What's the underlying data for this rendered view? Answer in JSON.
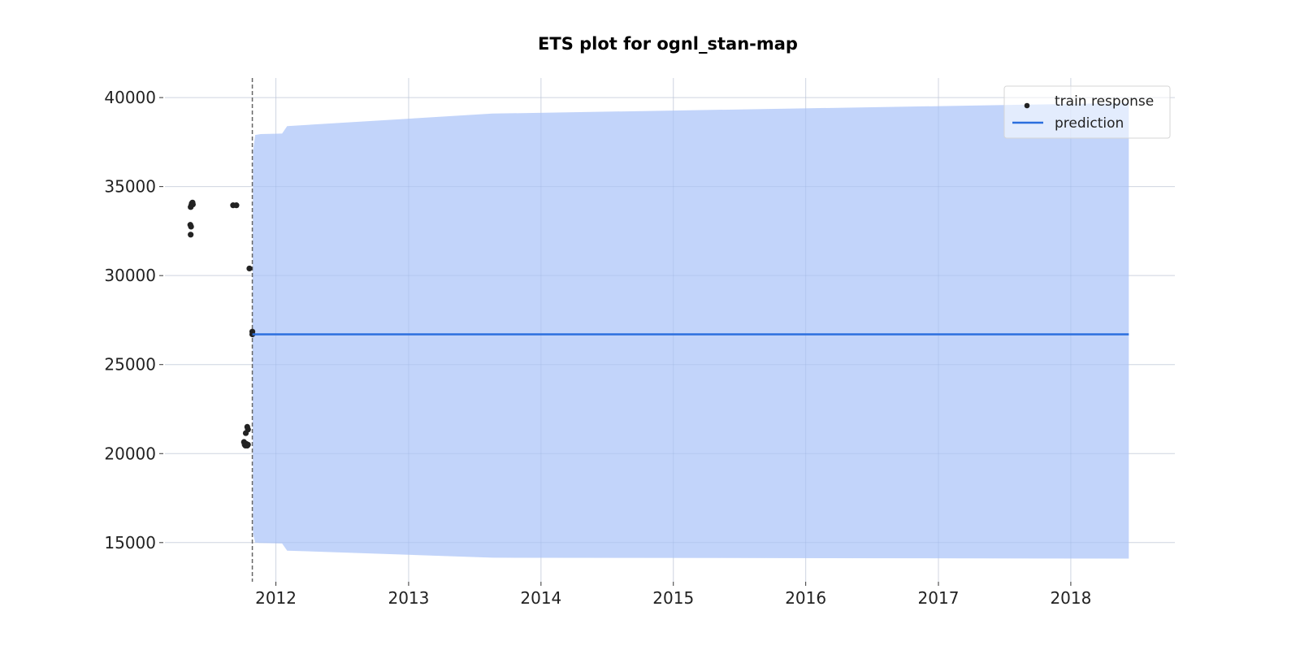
{
  "chart_data": {
    "type": "line",
    "title": "ETS plot for ognl_stan-map",
    "xlabel": "",
    "ylabel": "",
    "xlim": [
      "2011-03-01",
      "2018-10-15"
    ],
    "ylim": [
      12800,
      41100
    ],
    "x_ticks": [
      "2012",
      "2013",
      "2014",
      "2015",
      "2016",
      "2017",
      "2018"
    ],
    "y_ticks": [
      "15000",
      "20000",
      "25000",
      "30000",
      "35000",
      "40000"
    ],
    "grid": true,
    "legend_position": "top-right",
    "train_end": "2011-10-28",
    "series": [
      {
        "name": "train response",
        "kind": "scatter",
        "color": "#222222",
        "points": [
          {
            "x": "2011-05-11",
            "y": 33850
          },
          {
            "x": "2011-05-13",
            "y": 33950
          },
          {
            "x": "2011-05-14",
            "y": 34050
          },
          {
            "x": "2011-05-16",
            "y": 34100
          },
          {
            "x": "2011-05-17",
            "y": 34000
          },
          {
            "x": "2011-05-10",
            "y": 32850
          },
          {
            "x": "2011-05-12",
            "y": 32750
          },
          {
            "x": "2011-05-11",
            "y": 32300
          },
          {
            "x": "2011-09-05",
            "y": 33950
          },
          {
            "x": "2011-09-14",
            "y": 33950
          },
          {
            "x": "2011-10-20",
            "y": 30400
          },
          {
            "x": "2011-10-28",
            "y": 26850
          },
          {
            "x": "2011-10-28",
            "y": 26700
          },
          {
            "x": "2011-10-14",
            "y": 21500
          },
          {
            "x": "2011-10-16",
            "y": 21350
          },
          {
            "x": "2011-10-10",
            "y": 21150
          },
          {
            "x": "2011-10-05",
            "y": 20650
          },
          {
            "x": "2011-10-07",
            "y": 20500
          },
          {
            "x": "2011-10-09",
            "y": 20450
          },
          {
            "x": "2011-10-11",
            "y": 20550
          },
          {
            "x": "2011-10-14",
            "y": 20450
          },
          {
            "x": "2011-10-16",
            "y": 20500
          }
        ]
      },
      {
        "name": "prediction",
        "kind": "line",
        "color": "#2b6fde",
        "points": [
          {
            "x": "2011-10-28",
            "y": 26700
          },
          {
            "x": "2018-06-10",
            "y": 26700
          }
        ]
      }
    ],
    "interval": {
      "color": "#bfd2fa",
      "points": [
        {
          "x": "2011-10-28",
          "lower": 26700,
          "upper": 26700
        },
        {
          "x": "2011-10-30",
          "lower": 15500,
          "upper": 37000
        },
        {
          "x": "2011-11-05",
          "lower": 15000,
          "upper": 37900
        },
        {
          "x": "2011-11-20",
          "lower": 14980,
          "upper": 37950
        },
        {
          "x": "2012-01-18",
          "lower": 14950,
          "upper": 37980
        },
        {
          "x": "2012-02-01",
          "lower": 14550,
          "upper": 38400
        },
        {
          "x": "2013-08-20",
          "lower": 14150,
          "upper": 39100
        },
        {
          "x": "2018-06-10",
          "lower": 14100,
          "upper": 39700
        }
      ]
    }
  }
}
